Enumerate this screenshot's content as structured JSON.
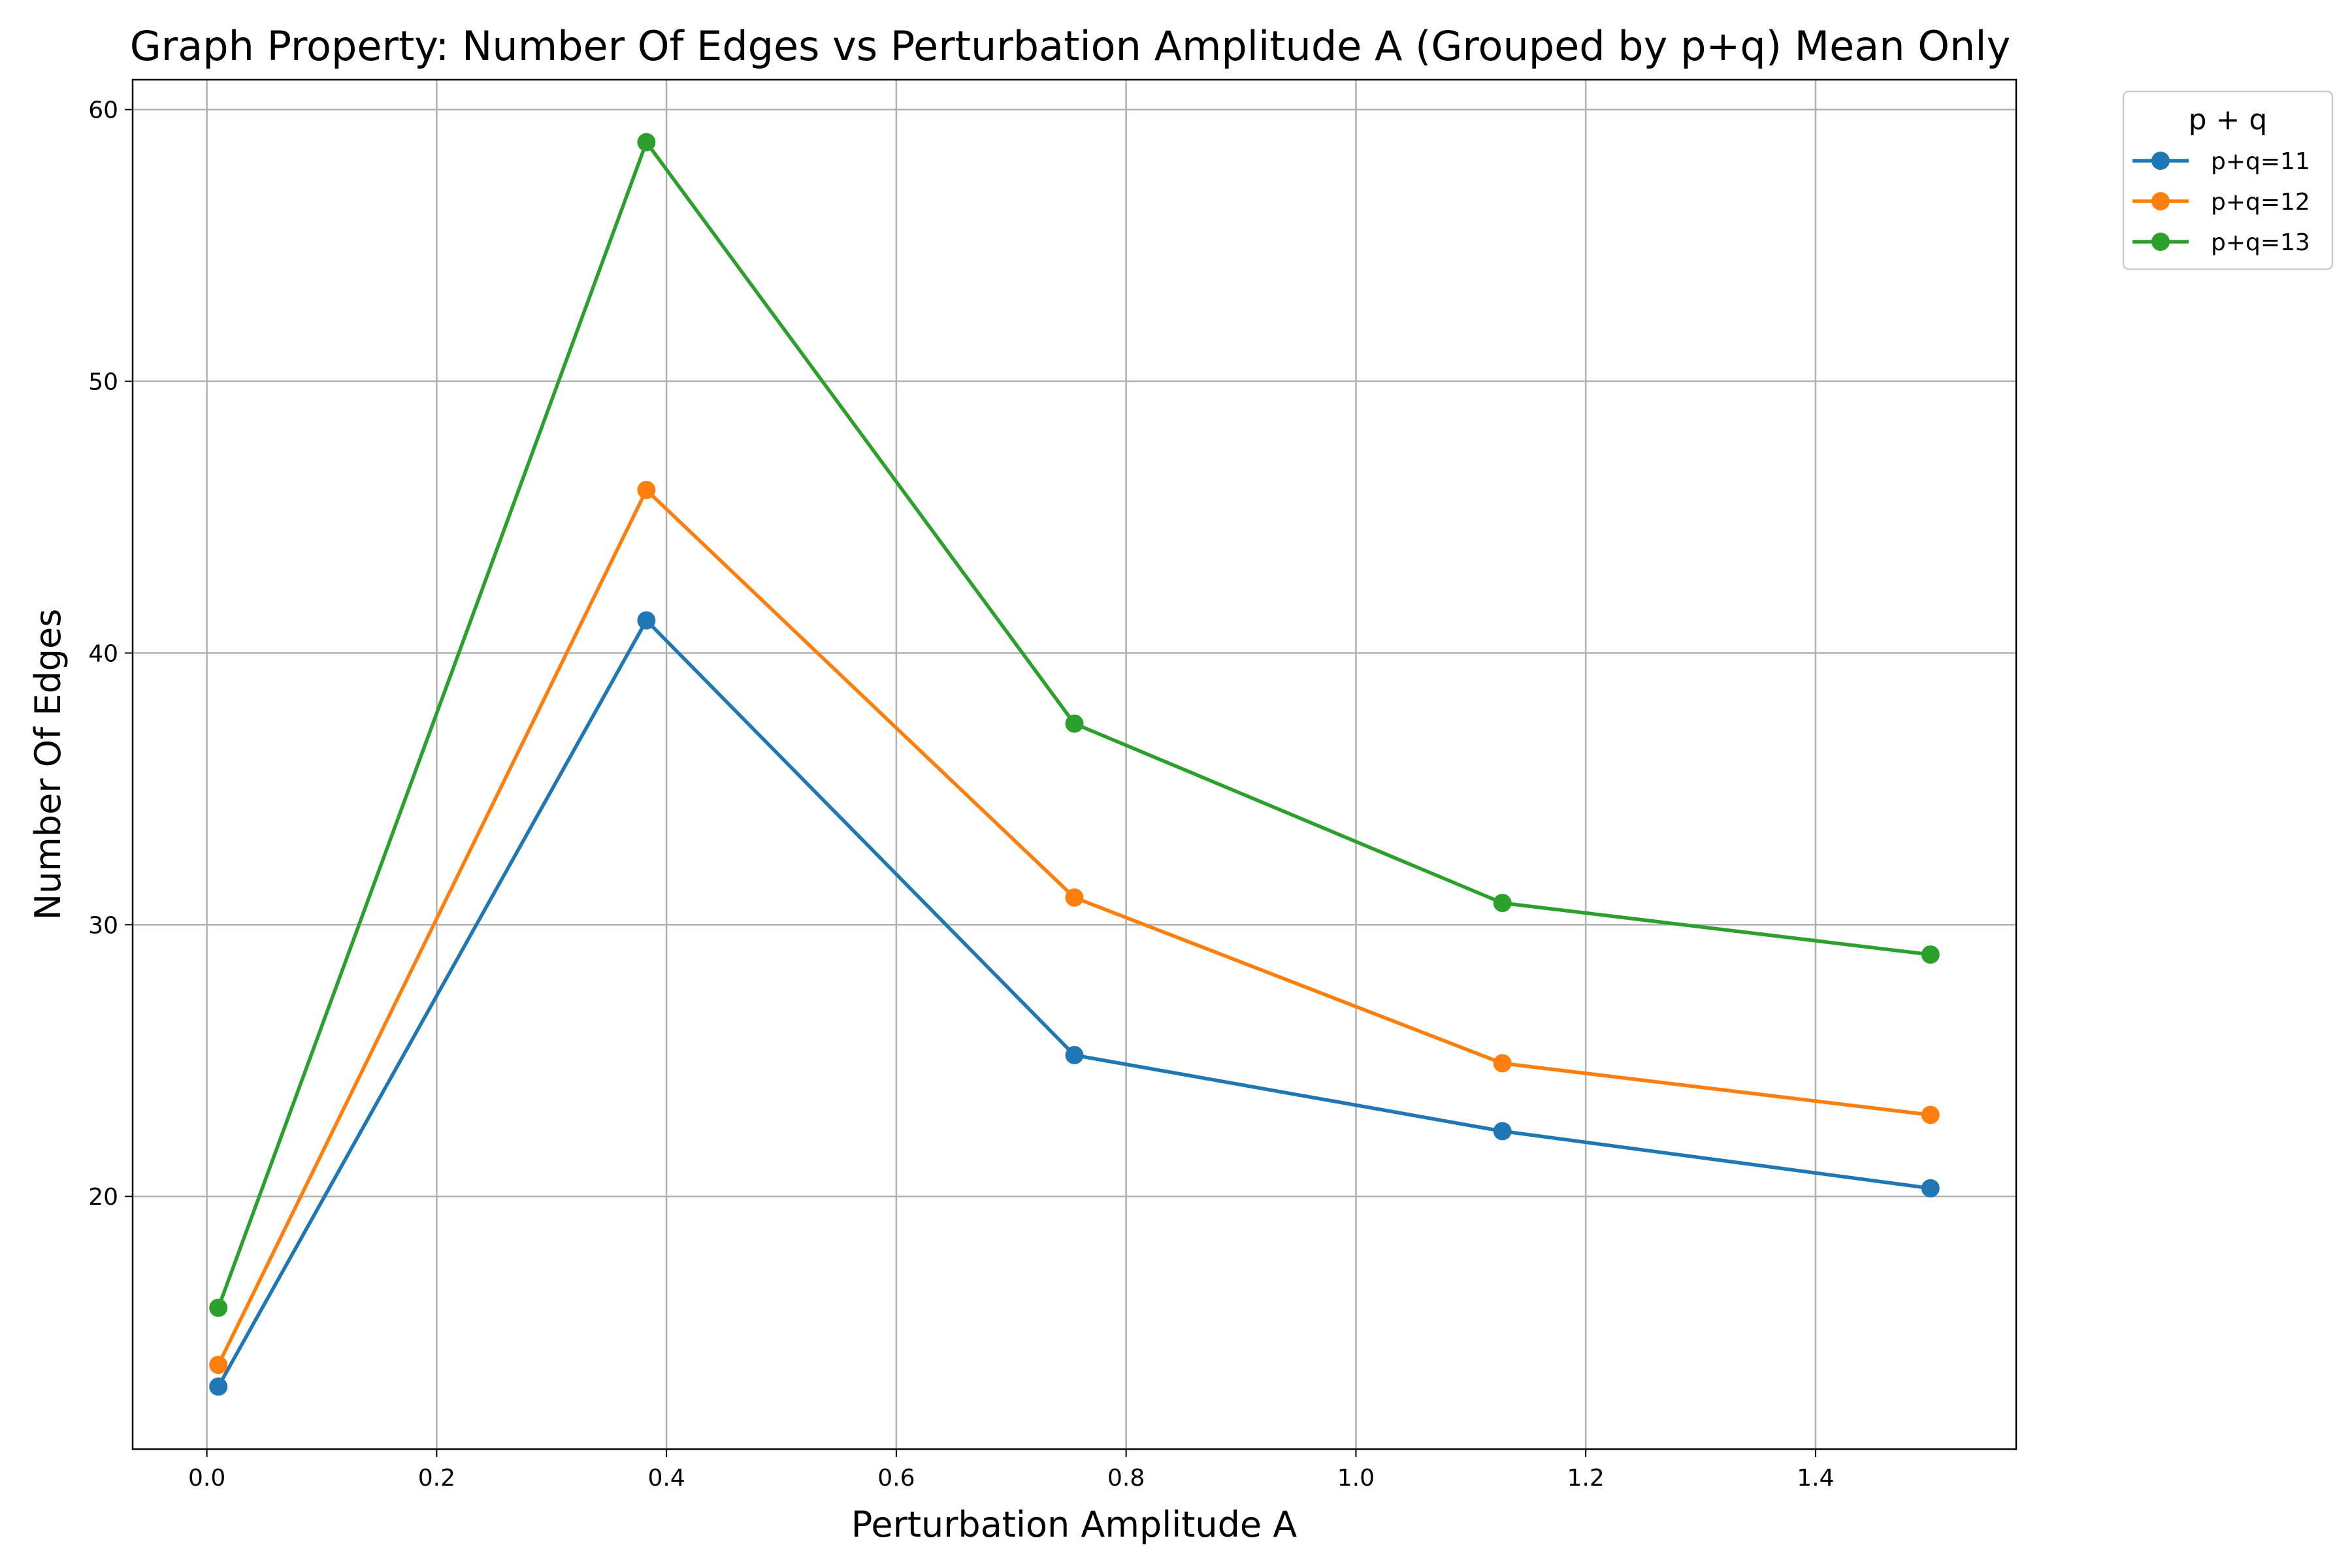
{
  "chart_data": {
    "type": "line",
    "title": "Graph Property: Number Of Edges vs Perturbation Amplitude A (Grouped by p+q) Mean Only",
    "xlabel": "Perturbation Amplitude A",
    "ylabel": "Number Of Edges",
    "xlim": [
      -0.0646,
      1.5746
    ],
    "ylim": [
      10.7,
      61.1
    ],
    "xticks": [
      0.0,
      0.2,
      0.4,
      0.6,
      0.8,
      1.0,
      1.2,
      1.4
    ],
    "xtick_labels": [
      "0.0",
      "0.2",
      "0.4",
      "0.6",
      "0.8",
      "1.0",
      "1.2",
      "1.4"
    ],
    "yticks": [
      20,
      30,
      40,
      50,
      60
    ],
    "ytick_labels": [
      "20",
      "30",
      "40",
      "50",
      "60"
    ],
    "grid": true,
    "legend": {
      "title": "p + q",
      "placement": "outside-top-right"
    },
    "x": [
      0.01,
      0.3825,
      0.755,
      1.1275,
      1.5
    ],
    "series": [
      {
        "name": "p+q=11",
        "color": "#1f77b4",
        "values": [
          13.0,
          41.2,
          25.2,
          22.4,
          20.3
        ]
      },
      {
        "name": "p+q=12",
        "color": "#ff7f0e",
        "values": [
          13.8,
          46.0,
          31.0,
          24.9,
          23.0
        ]
      },
      {
        "name": "p+q=13",
        "color": "#2ca02c",
        "values": [
          15.9,
          58.8,
          37.4,
          30.8,
          28.9
        ]
      }
    ]
  }
}
